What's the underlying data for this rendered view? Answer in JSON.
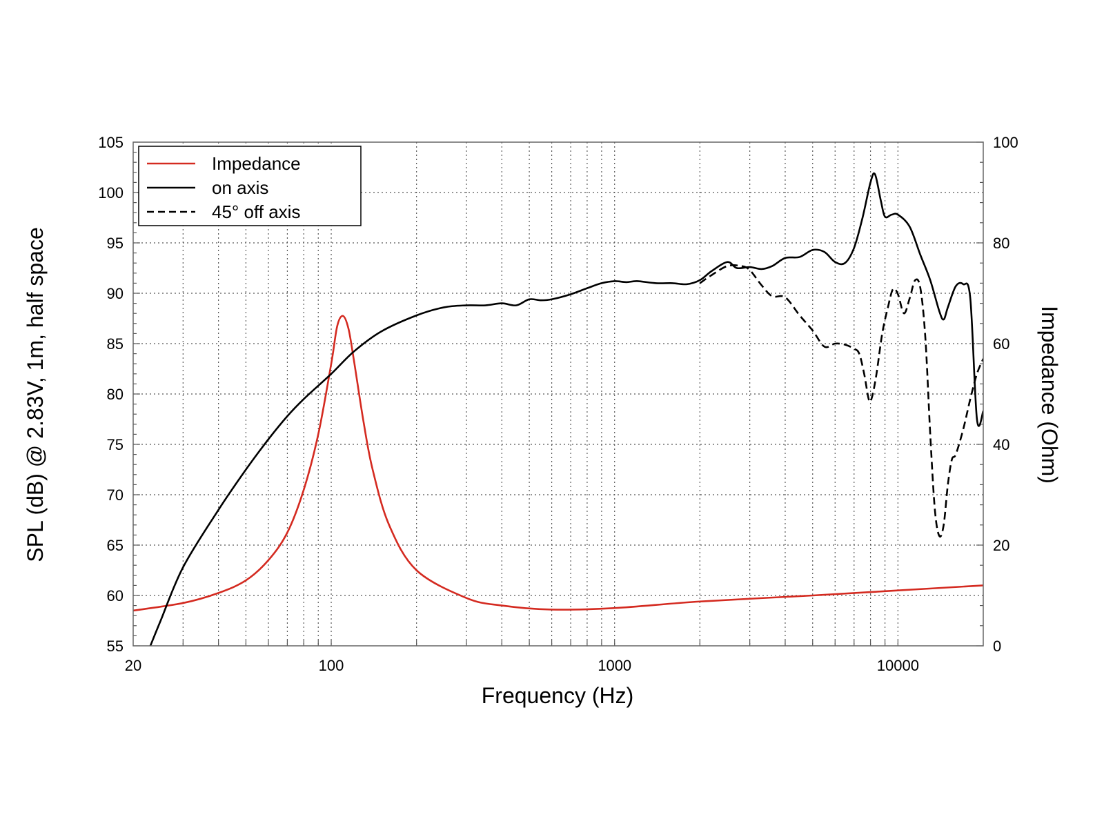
{
  "chart_data": {
    "type": "line",
    "xlabel": "Frequency (Hz)",
    "ylabel": "SPL (dB) @ 2.83V, 1m, half space",
    "y2label": "Impedance (Ohm)",
    "xscale": "log",
    "xlim": [
      20,
      20000
    ],
    "ylim": [
      55,
      105
    ],
    "y2lim": [
      0,
      100
    ],
    "x_ticks": [
      20,
      100,
      1000,
      10000
    ],
    "x_tick_labels": [
      "20",
      "100",
      "1000",
      "10000"
    ],
    "y_ticks": [
      55,
      60,
      65,
      70,
      75,
      80,
      85,
      90,
      95,
      100,
      105
    ],
    "y_tick_labels": [
      "55",
      "60",
      "65",
      "70",
      "75",
      "80",
      "85",
      "90",
      "95",
      "100",
      "105"
    ],
    "y2_ticks": [
      0,
      20,
      40,
      60,
      80,
      100
    ],
    "y2_tick_labels": [
      "0",
      "20",
      "40",
      "60",
      "80",
      "100"
    ],
    "grid": true,
    "legend_position": "top-left",
    "series": [
      {
        "name": "Impedance",
        "axis": "right",
        "color": "#d42a20",
        "style": "solid",
        "x": [
          20,
          30,
          40,
          50,
          60,
          70,
          80,
          90,
          100,
          105,
          110,
          115,
          120,
          130,
          140,
          160,
          200,
          300,
          400,
          600,
          1000,
          2000,
          5000,
          10000,
          20000
        ],
        "y": [
          7,
          8.5,
          10.5,
          13,
          17,
          22.5,
          31,
          42,
          56,
          63.5,
          65.5,
          63,
          57,
          44.5,
          35,
          24,
          15,
          9.5,
          8,
          7.2,
          7.5,
          8.8,
          10,
          11,
          12
        ]
      },
      {
        "name": "on axis",
        "axis": "left",
        "color": "#000000",
        "style": "solid",
        "x": [
          23,
          25,
          30,
          40,
          50,
          60,
          70,
          80,
          100,
          120,
          150,
          200,
          250,
          300,
          350,
          400,
          450,
          500,
          550,
          600,
          700,
          800,
          900,
          1000,
          1100,
          1200,
          1400,
          1600,
          1800,
          2000,
          2200,
          2500,
          2700,
          3000,
          3300,
          3600,
          4000,
          4500,
          5000,
          5500,
          6000,
          6500,
          7000,
          7500,
          8000,
          8300,
          8700,
          9000,
          9500,
          10000,
          11000,
          12000,
          13000,
          14000,
          14500,
          15000,
          16000,
          17000,
          18000,
          19000,
          20000
        ],
        "y": [
          55,
          57.5,
          62.8,
          68.5,
          72.5,
          75.5,
          77.8,
          79.5,
          82,
          84.2,
          86.2,
          87.8,
          88.6,
          88.8,
          88.8,
          89,
          88.8,
          89.4,
          89.3,
          89.4,
          89.9,
          90.5,
          91,
          91.2,
          91.1,
          91.2,
          91,
          91,
          90.9,
          91.3,
          92.2,
          93.1,
          92.5,
          92.6,
          92.4,
          92.7,
          93.5,
          93.6,
          94.3,
          94.1,
          93.1,
          93,
          94.5,
          97.5,
          101,
          101.8,
          99.2,
          97.6,
          97.8,
          97.8,
          96.6,
          93.8,
          91.3,
          88.2,
          87.4,
          88.6,
          90.7,
          90.9,
          89.5,
          77.5,
          78.3
        ]
      },
      {
        "name": "45° off axis",
        "axis": "left",
        "color": "#000000",
        "style": "dashed",
        "x": [
          2000,
          2200,
          2500,
          2800,
          3000,
          3300,
          3600,
          4000,
          4500,
          5000,
          5500,
          6000,
          6500,
          7000,
          7300,
          7600,
          7900,
          8100,
          8400,
          8800,
          9200,
          9600,
          10000,
          10500,
          11000,
          11500,
          12000,
          12500,
          13000,
          13500,
          14000,
          14500,
          15000,
          15500,
          16000,
          17000,
          18000,
          19000,
          20000
        ],
        "y": [
          91,
          91.8,
          92.7,
          92.7,
          92.3,
          90.8,
          89.7,
          89.6,
          87.8,
          86.3,
          84.7,
          85.0,
          84.9,
          84.5,
          84.0,
          82.0,
          79.4,
          79.7,
          82.0,
          86.0,
          88.5,
          90.4,
          89.9,
          88.0,
          89.5,
          91.3,
          90.5,
          85.5,
          76.0,
          68.5,
          65.9,
          67.0,
          71.0,
          73.5,
          74.0,
          76.5,
          79.5,
          82.0,
          83.5
        ]
      }
    ]
  }
}
